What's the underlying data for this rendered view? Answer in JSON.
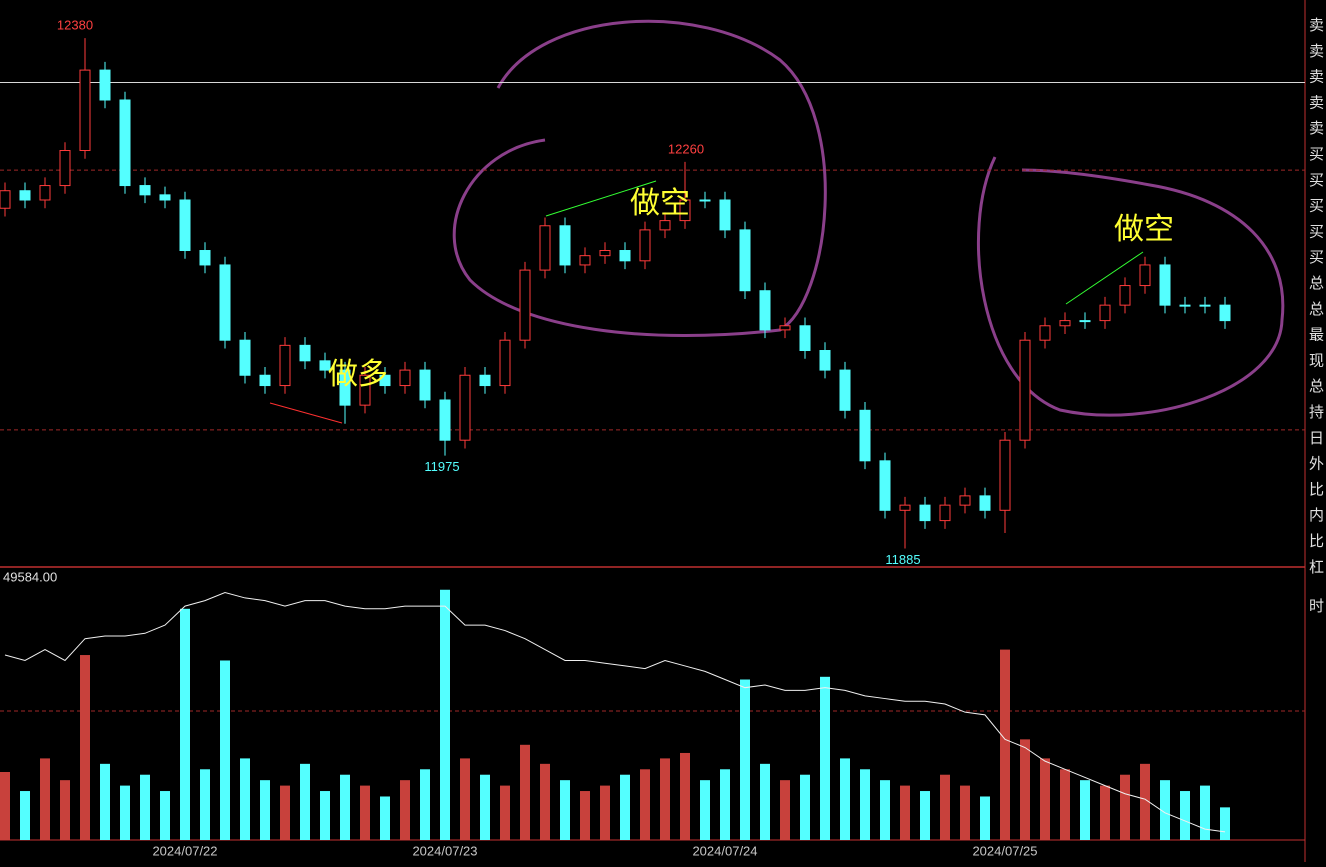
{
  "chart_data": {
    "type": "candlestick",
    "categories": [
      null,
      null,
      null,
      null,
      null,
      null,
      null,
      null,
      null,
      "2024/07/22",
      null,
      null,
      null,
      null,
      null,
      null,
      null,
      null,
      null,
      null,
      null,
      null,
      "2024/07/23",
      null,
      null,
      null,
      null,
      null,
      null,
      null,
      null,
      null,
      null,
      null,
      null,
      null,
      "2024/07/24",
      null,
      null,
      null,
      null,
      null,
      null,
      null,
      null,
      null,
      null,
      null,
      null,
      null,
      "2024/07/25",
      null,
      null,
      null,
      null,
      null,
      null,
      null,
      null,
      null,
      null,
      null
    ],
    "open": [
      12215,
      12232,
      12223,
      12237,
      12271,
      12349,
      12320,
      12237,
      12228,
      12223,
      12174,
      12160,
      12087,
      12053,
      12043,
      12082,
      12067,
      12058,
      12024,
      12053,
      12043,
      12058,
      12029,
      11990,
      12053,
      12043,
      12087,
      12155,
      12198,
      12160,
      12169,
      12174,
      12164,
      12194,
      12203,
      12223,
      12223,
      12194,
      12135,
      12097,
      12101,
      12077,
      12058,
      12019,
      11970,
      11922,
      11927,
      11912,
      11927,
      11936,
      11922,
      11990,
      12087,
      12101,
      12106,
      12106,
      12121,
      12140,
      12160,
      12121,
      12121,
      12121
    ],
    "high": [
      12240,
      12240,
      12245,
      12279,
      12380,
      12357,
      12328,
      12245,
      12236,
      12231,
      12182,
      12168,
      12095,
      12061,
      12090,
      12090,
      12075,
      12066,
      12061,
      12061,
      12066,
      12066,
      12037,
      12061,
      12061,
      12095,
      12163,
      12206,
      12206,
      12177,
      12182,
      12182,
      12202,
      12211,
      12260,
      12231,
      12231,
      12202,
      12143,
      12109,
      12109,
      12085,
      12066,
      12027,
      11978,
      11935,
      11935,
      11935,
      11944,
      11944,
      11998,
      12095,
      12109,
      12114,
      12114,
      12129,
      12148,
      12168,
      12168,
      12129,
      12129,
      12129
    ],
    "low": [
      12207,
      12215,
      12215,
      12229,
      12263,
      12312,
      12229,
      12220,
      12215,
      12166,
      12152,
      12079,
      12045,
      12035,
      12035,
      12059,
      12050,
      12006,
      12016,
      12035,
      12035,
      12021,
      11975,
      11982,
      12035,
      12035,
      12079,
      12147,
      12152,
      12152,
      12161,
      12156,
      12156,
      12186,
      12195,
      12215,
      12186,
      12127,
      12089,
      12089,
      12069,
      12050,
      12011,
      11962,
      11914,
      11885,
      11904,
      11904,
      11919,
      11914,
      11900,
      11982,
      12079,
      12093,
      12098,
      12098,
      12113,
      12132,
      12113,
      12113,
      12113,
      12098
    ],
    "close": [
      12232,
      12223,
      12237,
      12271,
      12349,
      12320,
      12237,
      12228,
      12223,
      12174,
      12160,
      12087,
      12053,
      12043,
      12082,
      12067,
      12058,
      12024,
      12053,
      12043,
      12058,
      12029,
      11990,
      12053,
      12043,
      12087,
      12155,
      12198,
      12160,
      12169,
      12174,
      12164,
      12194,
      12203,
      12223,
      12223,
      12194,
      12135,
      12097,
      12101,
      12077,
      12058,
      12019,
      11970,
      11922,
      11927,
      11912,
      11927,
      11936,
      11922,
      11990,
      12087,
      12101,
      12106,
      12106,
      12121,
      12140,
      12160,
      12121,
      12121,
      12121,
      12106
    ],
    "volume": [
      25,
      18,
      30,
      22,
      68,
      28,
      20,
      24,
      18,
      85,
      26,
      66,
      30,
      22,
      20,
      28,
      18,
      24,
      20,
      16,
      22,
      26,
      92,
      30,
      24,
      20,
      35,
      28,
      22,
      18,
      20,
      24,
      26,
      30,
      32,
      22,
      26,
      59,
      28,
      22,
      24,
      60,
      30,
      26,
      22,
      20,
      18,
      24,
      20,
      16,
      70,
      37,
      30,
      26,
      22,
      20,
      24,
      28,
      22,
      18,
      20,
      12
    ],
    "volume_ylim": [
      0,
      100
    ],
    "oi": {
      "label": "49584.00",
      "values": [
        68,
        66,
        70,
        66,
        74,
        75,
        75,
        76,
        79,
        86,
        88,
        91,
        89,
        88,
        86,
        88,
        88,
        86,
        85,
        85,
        86,
        86,
        86,
        79,
        79,
        77,
        74,
        70,
        66,
        66,
        65,
        64,
        63,
        66,
        64,
        62,
        59,
        56,
        57,
        55,
        55,
        56,
        55,
        53,
        52,
        51,
        51,
        50,
        47,
        46,
        37,
        34,
        29,
        26,
        23,
        20,
        17,
        15,
        10,
        7,
        4,
        3
      ]
    },
    "oi_ylim": [
      0,
      100
    ],
    "ylim": [
      11867,
      12417
    ],
    "hlines": [
      {
        "value": 12337,
        "style": "solid"
      },
      {
        "value": 12252,
        "style": "dashed"
      },
      {
        "value": 12000,
        "style": "dashed"
      }
    ],
    "extreme_labels": [
      12380,
      12260,
      11975,
      11885
    ],
    "annotations": [
      "做多",
      "做空",
      "做空"
    ],
    "up_color": "#ff3b3b",
    "down_color": "#54ffff",
    "volume_up_color": "#c8413c",
    "side_labels": [
      "卖",
      "卖",
      "卖",
      "卖",
      "卖",
      "买",
      "买",
      "买",
      "买",
      "买",
      "总",
      "总",
      "最",
      "现",
      "总",
      "持",
      "日",
      "外",
      "比",
      "内",
      "比",
      "杠",
      "时"
    ]
  }
}
